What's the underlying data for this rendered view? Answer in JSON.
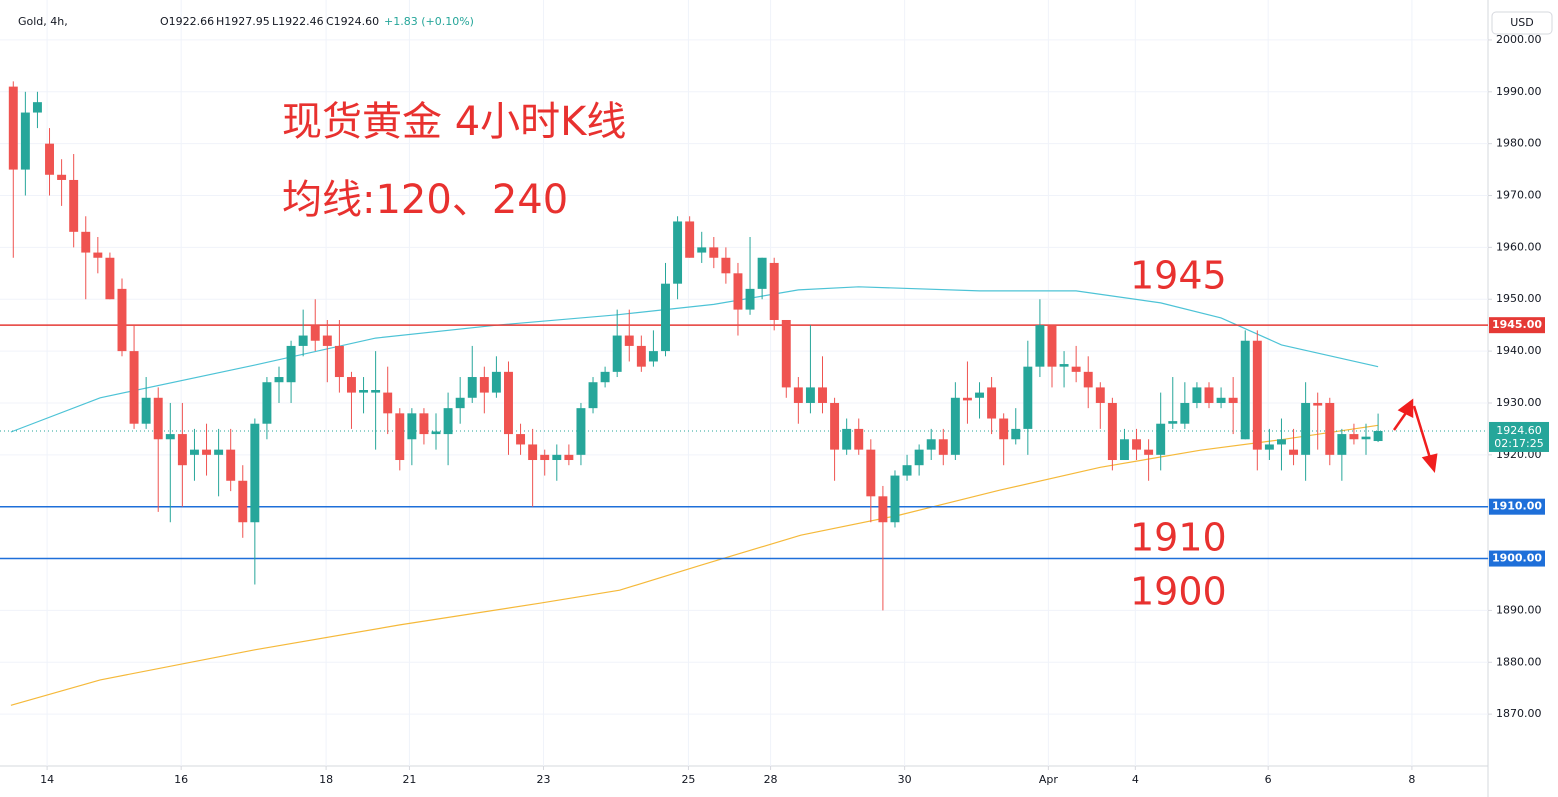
{
  "chart_data": {
    "type": "candlestick",
    "header": {
      "symbol": "Gold, 4h,",
      "open": "O1922.66",
      "high": "H1927.95",
      "low": "L1922.46",
      "close": "C1924.60",
      "change": "+1.83 (+0.10%)"
    },
    "currency": "USD",
    "annotations": [
      "现货黄金 4小时K线",
      "均线:120、240",
      "1945",
      "1910",
      "1900"
    ],
    "x": [
      0,
      1,
      2,
      3,
      4,
      5,
      6,
      7,
      8,
      9,
      10,
      11,
      12,
      13,
      14,
      15,
      16,
      17,
      18,
      19,
      20,
      21,
      22,
      23,
      24,
      25,
      26,
      27,
      28,
      29,
      30,
      31,
      32,
      33,
      34,
      35,
      36,
      37,
      38,
      39,
      40,
      41,
      42,
      43,
      44,
      45,
      46,
      47,
      48,
      49,
      50,
      51,
      52,
      53,
      54,
      55,
      56,
      57,
      58,
      59,
      60,
      61,
      62,
      63,
      64,
      65,
      66,
      67,
      68,
      69,
      70,
      71,
      72,
      73,
      74,
      75,
      76,
      77,
      78,
      79,
      80,
      81,
      82,
      83,
      84,
      85,
      86,
      87,
      88,
      89,
      90,
      91,
      92,
      93,
      94,
      95,
      96,
      97,
      98,
      99,
      100,
      101,
      102,
      103,
      104,
      105,
      106,
      107,
      108,
      109,
      110,
      111,
      112,
      113
    ],
    "open": [
      1991,
      1975,
      1986,
      1980,
      1974,
      1973,
      1963,
      1959,
      1958,
      1952,
      1940,
      1926,
      1931,
      1923,
      1924,
      1920,
      1921,
      1920,
      1921,
      1915,
      1907,
      1926,
      1934,
      1934,
      1941,
      1945,
      1943,
      1941,
      1935,
      1932,
      1932,
      1932,
      1928,
      1923,
      1928,
      1924,
      1924,
      1929,
      1931,
      1935,
      1932,
      1936,
      1924,
      1922,
      1920,
      1919,
      1920,
      1920,
      1929,
      1934,
      1936,
      1943,
      1941,
      1938,
      1940,
      1953,
      1965,
      1959,
      1960,
      1958,
      1955,
      1948,
      1952,
      1957,
      1946,
      1933,
      1930,
      1933,
      1930,
      1921,
      1925,
      1921,
      1912,
      1907,
      1916,
      1918,
      1921,
      1923,
      1920,
      1931,
      1931,
      1933,
      1927,
      1923,
      1925,
      1937,
      1945,
      1937,
      1937,
      1936,
      1933,
      1930,
      1919,
      1923,
      1921,
      1920,
      1926,
      1926,
      1930,
      1933,
      1930,
      1931,
      1923,
      1942,
      1921,
      1922,
      1921,
      1920,
      1930,
      1930,
      1920,
      1924,
      1923,
      1922.66
    ],
    "high": [
      1992,
      1990,
      1990,
      1983,
      1977,
      1978,
      1966,
      1962,
      1959,
      1954,
      1945,
      1935,
      1933,
      1930,
      1930,
      1925,
      1926,
      1925,
      1925,
      1918,
      1927,
      1935,
      1937,
      1942,
      1948,
      1950,
      1946,
      1946,
      1936,
      1935,
      1940,
      1937,
      1929,
      1929,
      1929,
      1928,
      1932,
      1935,
      1941,
      1937,
      1939,
      1938,
      1926,
      1925,
      1921,
      1922,
      1922,
      1930,
      1935,
      1937,
      1948,
      1948,
      1943,
      1944,
      1957,
      1966,
      1966,
      1963,
      1962,
      1960,
      1957,
      1962,
      1958,
      1958,
      1946,
      1935,
      1945,
      1939,
      1931,
      1927,
      1927,
      1923,
      1914,
      1917,
      1920,
      1922,
      1925,
      1925,
      1934,
      1938,
      1934,
      1935,
      1928,
      1929,
      1942,
      1950,
      1945,
      1940,
      1941,
      1939,
      1934,
      1931,
      1925,
      1925,
      1923,
      1932,
      1935,
      1934,
      1934,
      1934,
      1933,
      1935,
      1944,
      1944,
      1925,
      1927,
      1925,
      1934,
      1932,
      1931,
      1925,
      1926,
      1926,
      1927.95
    ],
    "low": [
      1958,
      1970,
      1983,
      1970,
      1968,
      1960,
      1950,
      1955,
      1950,
      1939,
      1925,
      1925,
      1909,
      1907,
      1910,
      1915,
      1916,
      1912,
      1913,
      1904,
      1895,
      1923,
      1930,
      1930,
      1939,
      1940,
      1934,
      1932,
      1925,
      1928,
      1921,
      1924,
      1917,
      1918,
      1922,
      1921,
      1918,
      1926,
      1930,
      1928,
      1931,
      1920,
      1920,
      1910,
      1916,
      1915,
      1918,
      1918,
      1928,
      1933,
      1935,
      1938,
      1936,
      1937,
      1939,
      1950,
      1958,
      1957,
      1956,
      1953,
      1943,
      1947,
      1950,
      1944,
      1931,
      1926,
      1928,
      1928,
      1915,
      1920,
      1920,
      1907,
      1890,
      1906,
      1915,
      1916,
      1919,
      1918,
      1919,
      1926,
      1927,
      1924,
      1918,
      1922,
      1920,
      1935,
      1933,
      1933,
      1934,
      1929,
      1925,
      1917,
      1919,
      1919,
      1915,
      1917,
      1925,
      1925,
      1929,
      1929,
      1929,
      1924,
      1923,
      1917,
      1919,
      1917,
      1918,
      1915,
      1921,
      1918,
      1915,
      1922,
      1920,
      1922.46
    ],
    "close": [
      1975,
      1986,
      1988,
      1974,
      1973,
      1963,
      1959,
      1958,
      1950,
      1940,
      1926,
      1931,
      1923,
      1924,
      1918,
      1921,
      1920,
      1921,
      1915,
      1907,
      1926,
      1934,
      1935,
      1941,
      1943,
      1942,
      1941,
      1935,
      1932,
      1932.5,
      1932.5,
      1928,
      1919,
      1928,
      1924,
      1924.5,
      1929,
      1931,
      1935,
      1932,
      1936,
      1924,
      1922,
      1919,
      1919,
      1920,
      1919,
      1929,
      1934,
      1936,
      1943,
      1941,
      1937,
      1940,
      1953,
      1965,
      1958,
      1960,
      1958,
      1955,
      1948,
      1952,
      1958,
      1946,
      1933,
      1930,
      1933,
      1930,
      1921,
      1925,
      1921,
      1912,
      1907,
      1916,
      1918,
      1921,
      1923,
      1920,
      1931,
      1930.5,
      1932,
      1927,
      1923,
      1925,
      1937,
      1945,
      1937,
      1937.5,
      1936,
      1933,
      1930,
      1919,
      1923,
      1921,
      1920,
      1926,
      1926.5,
      1930,
      1933,
      1930,
      1931,
      1930,
      1942,
      1921,
      1922,
      1923,
      1920,
      1930,
      1929.5,
      1920,
      1924,
      1923,
      1923.5,
      1924.6
    ],
    "up_color": "#26a69a",
    "down_color": "#ef5350",
    "lines": [
      {
        "color": "#4dc3d6",
        "x": [
          -0.2,
          7.2,
          20,
          30,
          40,
          50,
          58,
          65,
          70,
          80,
          88,
          95,
          100,
          105,
          113
        ],
        "values": [
          1924.4,
          1931,
          1937.3,
          1942.5,
          1945,
          1947,
          1949,
          1951.8,
          1952.4,
          1951.6,
          1951.6,
          1949.3,
          1946.4,
          1941.2,
          1937
        ]
      },
      {
        "color": "#f5b93a",
        "x": [
          -0.2,
          7.2,
          20,
          32,
          43.6,
          50.2,
          56.9,
          65.2,
          73.4,
          81.7,
          90,
          98.3,
          104.9,
          113
        ],
        "values": [
          1871.7,
          1876.6,
          1882.4,
          1887.2,
          1891.4,
          1893.9,
          1898.7,
          1904.5,
          1908.4,
          1913.2,
          1917.6,
          1920.9,
          1922.9,
          1925.7
        ]
      }
    ],
    "levels": [
      {
        "value": 1945,
        "label": "1945.00",
        "color": "#e53935"
      },
      {
        "value": 1910,
        "label": "1910.00",
        "color": "#1e6fd9"
      },
      {
        "value": 1900,
        "label": "1900.00",
        "color": "#1e6fd9"
      }
    ],
    "last": {
      "value": 1924.6,
      "label": "1924.60",
      "countdown": "02:17:25",
      "color": "#26a69a"
    },
    "xlim": [
      -1.1,
      122.1
    ],
    "ylim": [
      1860,
      2007.7
    ],
    "yticks": [
      {
        "value": 1870,
        "label": "1870.00"
      },
      {
        "value": 1880,
        "label": "1880.00"
      },
      {
        "value": 1890,
        "label": "1890.00"
      },
      {
        "value": 1900,
        "label": "1900.00"
      },
      {
        "value": 1910,
        "label": "1910.00"
      },
      {
        "value": 1920,
        "label": "1920.00"
      },
      {
        "value": 1930,
        "label": "1930.00"
      },
      {
        "value": 1940,
        "label": "1940.00"
      },
      {
        "value": 1950,
        "label": "1950.00"
      },
      {
        "value": 1960,
        "label": "1960.00"
      },
      {
        "value": 1970,
        "label": "1970.00"
      },
      {
        "value": 1980,
        "label": "1980.00"
      },
      {
        "value": 1990,
        "label": "1990.00"
      },
      {
        "value": 2000,
        "label": "2000.00"
      }
    ],
    "xticks": [
      {
        "value": 2.8,
        "label": "14"
      },
      {
        "value": 13.9,
        "label": "16"
      },
      {
        "value": 25.9,
        "label": "18"
      },
      {
        "value": 32.8,
        "label": "21"
      },
      {
        "value": 43.9,
        "label": "23"
      },
      {
        "value": 55.9,
        "label": "25"
      },
      {
        "value": 62.7,
        "label": "28"
      },
      {
        "value": 73.8,
        "label": "30"
      },
      {
        "value": 85.7,
        "label": "Apr"
      },
      {
        "value": 92.9,
        "label": "4"
      },
      {
        "value": 103.9,
        "label": "6"
      },
      {
        "value": 115.8,
        "label": "8"
      }
    ]
  }
}
